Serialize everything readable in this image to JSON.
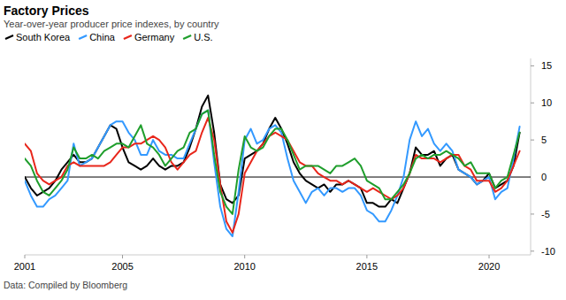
{
  "chart_data": {
    "type": "line",
    "title": "Factory Prices",
    "subtitle": "Year-over-year producer price indexes, by country",
    "source": "Data: Compiled by Bloomberg",
    "x": [
      2001,
      2001.25,
      2001.5,
      2001.75,
      2002,
      2002.25,
      2002.5,
      2002.75,
      2003,
      2003.25,
      2003.5,
      2003.75,
      2004,
      2004.25,
      2004.5,
      2004.75,
      2005,
      2005.25,
      2005.5,
      2005.75,
      2006,
      2006.25,
      2006.5,
      2006.75,
      2007,
      2007.25,
      2007.5,
      2007.75,
      2008,
      2008.25,
      2008.5,
      2008.75,
      2009,
      2009.25,
      2009.5,
      2009.75,
      2010,
      2010.25,
      2010.5,
      2010.75,
      2011,
      2011.25,
      2011.5,
      2011.75,
      2012,
      2012.25,
      2012.5,
      2012.75,
      2013,
      2013.25,
      2013.5,
      2013.75,
      2014,
      2014.25,
      2014.5,
      2014.75,
      2015,
      2015.25,
      2015.5,
      2015.75,
      2016,
      2016.25,
      2016.5,
      2016.75,
      2017,
      2017.25,
      2017.5,
      2017.75,
      2018,
      2018.25,
      2018.5,
      2018.75,
      2019,
      2019.25,
      2019.5,
      2019.75,
      2020,
      2020.25,
      2020.5,
      2020.75,
      2021,
      2021.25
    ],
    "series": [
      {
        "name": "South Korea",
        "color": "#000000",
        "values": [
          0.0,
          -1.5,
          -2.5,
          -2.0,
          -1.5,
          -0.5,
          1.0,
          2.0,
          3.0,
          2.0,
          2.0,
          2.5,
          4.0,
          5.5,
          7.0,
          6.5,
          4.0,
          2.0,
          1.5,
          1.0,
          1.5,
          2.5,
          1.5,
          1.0,
          1.5,
          1.5,
          2.0,
          4.0,
          6.5,
          9.5,
          11.0,
          6.0,
          -1.0,
          -3.0,
          -3.5,
          -2.5,
          2.5,
          3.0,
          3.5,
          4.5,
          6.5,
          8.0,
          6.5,
          4.5,
          2.0,
          0.5,
          -0.5,
          -1.0,
          -1.5,
          -1.0,
          -2.0,
          -1.0,
          -1.0,
          -0.5,
          -1.0,
          -1.5,
          -3.5,
          -3.5,
          -4.0,
          -4.0,
          -3.0,
          -3.5,
          -1.5,
          0.5,
          4.0,
          3.0,
          3.0,
          3.5,
          1.5,
          2.5,
          3.0,
          1.0,
          0.5,
          0.0,
          -1.0,
          -0.5,
          0.5,
          -1.5,
          -1.0,
          -0.5,
          1.5,
          6.0
        ]
      },
      {
        "name": "China",
        "color": "#3399ff",
        "values": [
          -0.5,
          -2.5,
          -4.0,
          -4.0,
          -3.0,
          -2.5,
          -1.5,
          -0.5,
          4.5,
          1.5,
          2.0,
          2.5,
          4.0,
          5.5,
          7.0,
          7.5,
          7.5,
          6.0,
          5.0,
          3.0,
          3.0,
          5.0,
          3.5,
          3.0,
          3.0,
          2.5,
          2.5,
          4.5,
          6.5,
          8.5,
          9.0,
          2.0,
          -4.0,
          -7.0,
          -8.0,
          -2.0,
          5.0,
          6.5,
          4.5,
          5.0,
          6.5,
          7.0,
          6.0,
          2.5,
          -0.5,
          -2.0,
          -3.5,
          -2.0,
          -1.5,
          -2.5,
          -1.5,
          -1.5,
          -2.0,
          -1.5,
          -1.5,
          -2.5,
          -4.5,
          -5.0,
          -6.0,
          -6.0,
          -4.5,
          -2.5,
          0.0,
          5.0,
          7.5,
          5.5,
          6.5,
          4.5,
          3.5,
          4.5,
          3.5,
          1.0,
          0.5,
          0.0,
          -1.0,
          -0.5,
          0.0,
          -3.0,
          -2.0,
          -1.5,
          2.5,
          6.8
        ]
      },
      {
        "name": "Germany",
        "color": "#e8261b",
        "values": [
          4.5,
          3.5,
          0.5,
          -0.5,
          -1.0,
          -0.5,
          0.0,
          1.5,
          2.0,
          1.5,
          1.5,
          1.5,
          1.5,
          1.5,
          2.0,
          3.0,
          4.0,
          4.0,
          4.5,
          4.5,
          5.0,
          5.5,
          5.0,
          4.0,
          2.0,
          1.0,
          2.0,
          3.0,
          3.5,
          6.0,
          8.0,
          5.0,
          -1.0,
          -6.0,
          -7.5,
          -5.0,
          0.5,
          2.0,
          3.5,
          4.5,
          5.5,
          6.0,
          5.5,
          5.0,
          3.5,
          2.0,
          1.5,
          1.5,
          0.5,
          0.0,
          -0.5,
          -0.5,
          -1.0,
          -0.5,
          -1.0,
          -1.5,
          -2.0,
          -1.5,
          -2.0,
          -2.5,
          -3.0,
          -2.5,
          -1.5,
          0.5,
          3.0,
          2.5,
          2.5,
          2.5,
          2.0,
          2.5,
          3.0,
          3.0,
          1.5,
          1.0,
          -0.5,
          -0.5,
          -0.5,
          -2.0,
          -1.5,
          -0.5,
          1.5,
          3.5
        ]
      },
      {
        "name": "U.S.",
        "color": "#1f9e2c",
        "values": [
          2.5,
          1.5,
          -0.5,
          -2.0,
          -2.5,
          -1.5,
          -0.5,
          1.0,
          4.0,
          2.5,
          2.5,
          3.0,
          2.5,
          3.5,
          4.0,
          4.5,
          4.5,
          4.0,
          5.5,
          7.0,
          4.5,
          4.0,
          3.0,
          1.5,
          2.5,
          3.5,
          4.0,
          6.0,
          6.5,
          8.5,
          9.0,
          3.0,
          -2.0,
          -4.0,
          -5.0,
          1.0,
          5.5,
          4.0,
          3.5,
          4.0,
          5.5,
          6.5,
          6.5,
          5.0,
          3.0,
          1.0,
          1.5,
          1.5,
          1.5,
          1.0,
          0.5,
          1.5,
          1.5,
          2.0,
          2.5,
          1.5,
          -0.5,
          -1.0,
          -1.5,
          -3.0,
          -3.0,
          -2.0,
          -1.0,
          0.5,
          2.5,
          3.0,
          2.5,
          3.0,
          3.0,
          3.5,
          3.0,
          2.5,
          1.5,
          2.0,
          0.5,
          0.5,
          0.5,
          -1.5,
          -0.5,
          0.0,
          3.0,
          6.0
        ]
      }
    ],
    "xlim": [
      2001,
      2021.7
    ],
    "xticks": [
      2001,
      2005,
      2010,
      2015,
      2020
    ],
    "ylim": [
      -10.5,
      16
    ],
    "yticks": [
      15,
      10,
      5,
      0,
      -5,
      -10
    ],
    "grid": false,
    "legend": "top"
  }
}
